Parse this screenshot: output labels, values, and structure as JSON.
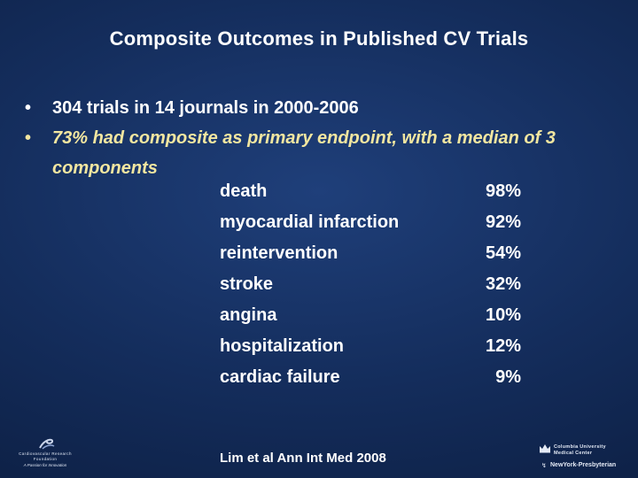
{
  "slide": {
    "title": "Composite Outcomes in Published CV Trials",
    "bullets": [
      {
        "marker": "•",
        "text": "304 trials in 14 journals in 2000-2006"
      },
      {
        "marker": "•",
        "text": "73% had composite as primary endpoint, with a median of 3 components"
      }
    ],
    "outcomes": [
      {
        "label": "death",
        "value": "98%"
      },
      {
        "label": "myocardial infarction",
        "value": "92%"
      },
      {
        "label": "reintervention",
        "value": "54%"
      },
      {
        "label": "stroke",
        "value": "32%"
      },
      {
        "label": "angina",
        "value": "10%"
      },
      {
        "label": "hospitalization",
        "value": "12%"
      },
      {
        "label": "cardiac failure",
        "value": "9%"
      }
    ],
    "citation": "Lim et al Ann Int Med 2008"
  },
  "logos": {
    "left": {
      "name": "Cardiovascular Research Foundation",
      "tagline": "A Passion for Innovation"
    },
    "right": {
      "line1": "Columbia University",
      "line2": "Medical Center",
      "line3": "NewYork-Presbyterian"
    }
  },
  "colors": {
    "background": "#142d5c",
    "text": "#ffffff",
    "highlight_text": "#f2e6a0"
  },
  "icons": {
    "left_logo": "crf-swoosh-icon",
    "right_logo": "columbia-crown-icon"
  }
}
